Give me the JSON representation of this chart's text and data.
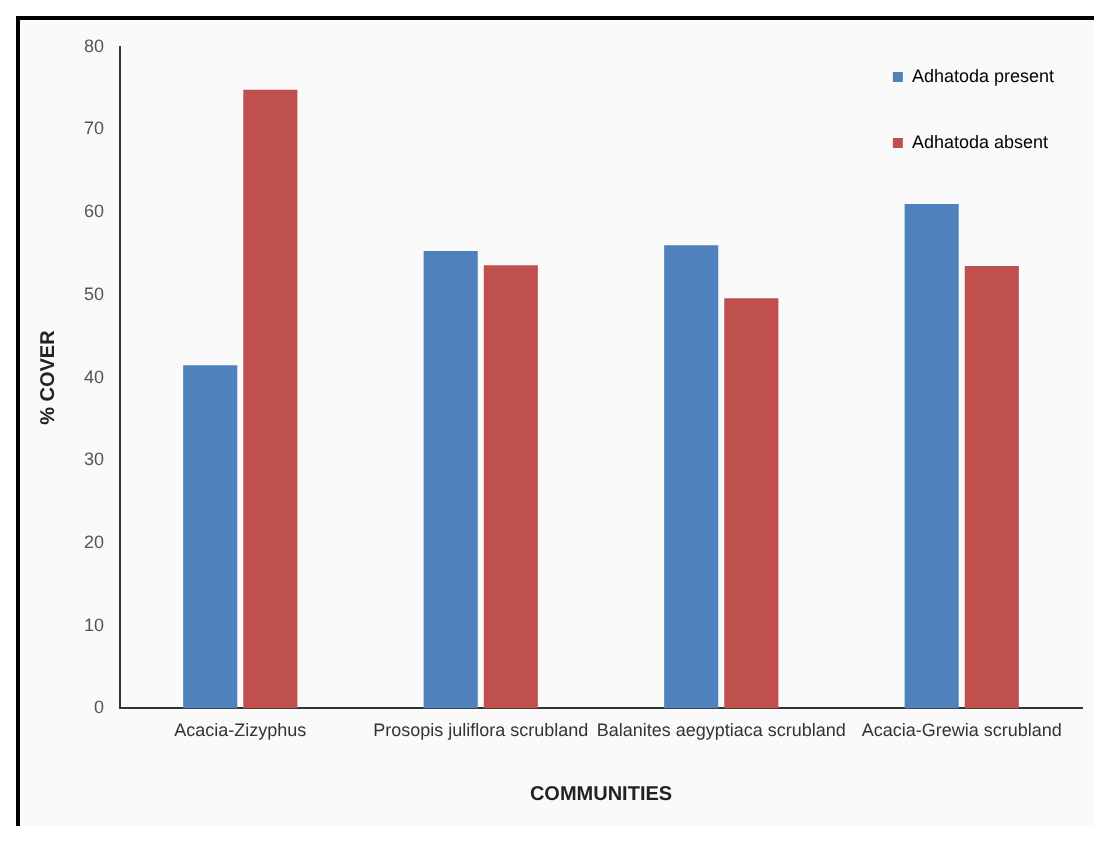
{
  "chart_data": {
    "type": "bar",
    "xlabel": "COMMUNITIES",
    "ylabel": "% COVER",
    "categories": [
      "Acacia-Zizyphus",
      "Prosopis juliflora scrubland",
      "Balanites aegyptiaca scrubland",
      "Acacia-Grewia scrubland"
    ],
    "series": [
      {
        "name": "Adhatoda present",
        "color": "#4f81bd",
        "values": [
          41.5,
          55.3,
          56,
          61
        ]
      },
      {
        "name": "Adhatoda absent",
        "color": "#c0504d",
        "values": [
          74.8,
          53.6,
          49.6,
          53.5
        ]
      }
    ],
    "ylim": [
      0,
      80
    ],
    "yticks": [
      0,
      10,
      20,
      30,
      40,
      50,
      60,
      70,
      80
    ],
    "grid": false,
    "legend": "top right"
  }
}
